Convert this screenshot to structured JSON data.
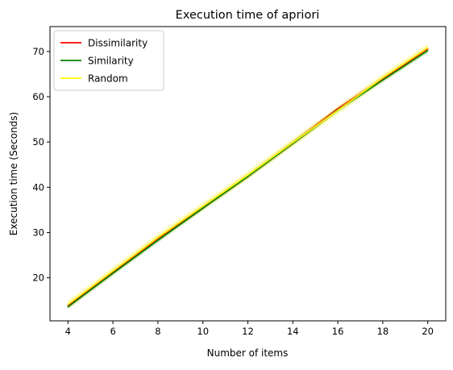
{
  "chart_data": {
    "type": "line",
    "title": "Execution time of apriori",
    "xlabel": "Number of items",
    "ylabel": "Execution time (Seconds)",
    "xlim": [
      3.2,
      20.8
    ],
    "ylim": [
      10.5,
      75.5
    ],
    "xticks": [
      4,
      6,
      8,
      10,
      12,
      14,
      16,
      18,
      20
    ],
    "yticks": [
      20,
      30,
      40,
      50,
      60,
      70
    ],
    "legend_position": "top-left",
    "grid": false,
    "x": [
      4,
      6,
      8,
      10,
      12,
      14,
      16,
      18,
      20
    ],
    "series": [
      {
        "name": "Dissimilarity",
        "color": "#ff0000",
        "values": [
          13.9,
          21.3,
          28.7,
          35.6,
          42.5,
          49.8,
          57.3,
          64.0,
          70.6
        ],
        "band": 0.5
      },
      {
        "name": "Similarity",
        "color": "#008000",
        "values": [
          13.6,
          21.0,
          28.3,
          35.4,
          42.4,
          49.7,
          57.1,
          63.7,
          70.2
        ],
        "band": 0.5
      },
      {
        "name": "Random",
        "color": "#ffff00",
        "values": [
          14.1,
          21.5,
          28.9,
          35.8,
          42.7,
          49.9,
          57.0,
          64.2,
          70.8
        ],
        "band": 0.9
      }
    ]
  }
}
